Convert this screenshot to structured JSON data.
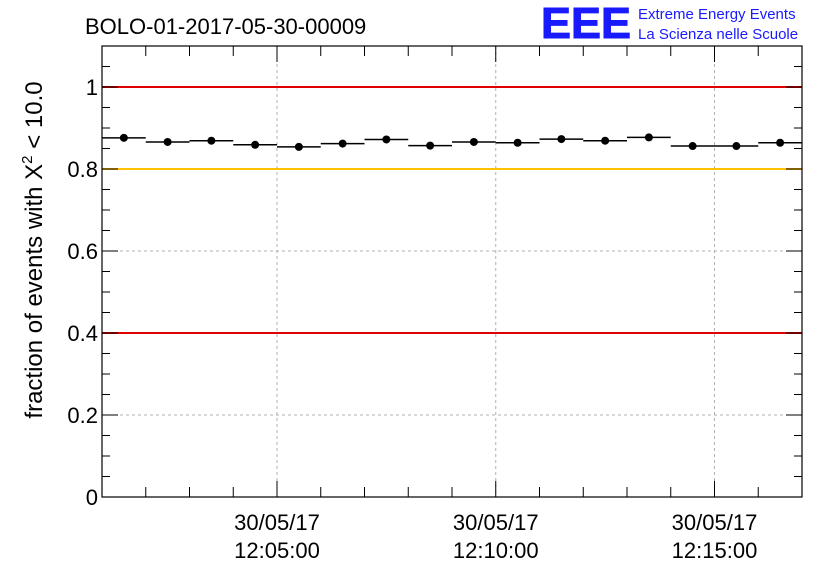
{
  "header": {
    "run_title": "BOLO-01-2017-05-30-00009",
    "logo_text": "EEE",
    "logo_line1": "Extreme Energy Events",
    "logo_line2": "La Scienza nelle Scuole"
  },
  "colors": {
    "brand_blue": "#1a1aff",
    "threshold_red": "#e00000",
    "threshold_yellow": "#ffc000",
    "marker": "#000000"
  },
  "chart_data": {
    "type": "scatter",
    "title": "BOLO-01-2017-05-30-00009",
    "ylabel_main": "fraction of events with Χ",
    "ylabel_sup": "2",
    "ylabel_tail": " < 10.0",
    "xlabel": "",
    "ylim": [
      0,
      1.1
    ],
    "xlim_minutes": [
      1.0,
      17.0
    ],
    "grid": true,
    "legend": "none",
    "x_axis": {
      "format": "dd/mm/yy hh:mm:ss",
      "ticks": [
        {
          "x": 5,
          "date": "30/05/17",
          "time": "12:05:00"
        },
        {
          "x": 10,
          "date": "30/05/17",
          "time": "12:10:00"
        },
        {
          "x": 15,
          "date": "30/05/17",
          "time": "12:15:00"
        }
      ]
    },
    "y_ticks": [
      "0",
      "0.2",
      "0.4",
      "0.6",
      "0.8",
      "1"
    ],
    "y_tick_values": [
      0,
      0.2,
      0.4,
      0.6,
      0.8,
      1.0
    ],
    "thresholds": [
      {
        "y": 1.0,
        "color": "#e00000"
      },
      {
        "y": 0.8,
        "color": "#ffc000"
      },
      {
        "y": 0.4,
        "color": "#e00000"
      }
    ],
    "bin_width_minutes": 1.0,
    "series": [
      {
        "x": [
          1.5,
          2.5,
          3.5,
          4.5,
          5.5,
          6.5,
          7.5,
          8.5,
          9.5,
          10.5,
          11.5,
          12.5,
          13.5,
          14.5,
          15.5,
          16.5
        ],
        "y": [
          0.876,
          0.866,
          0.869,
          0.859,
          0.854,
          0.862,
          0.872,
          0.857,
          0.866,
          0.864,
          0.873,
          0.869,
          0.877,
          0.856,
          0.856,
          0.864
        ]
      }
    ]
  }
}
